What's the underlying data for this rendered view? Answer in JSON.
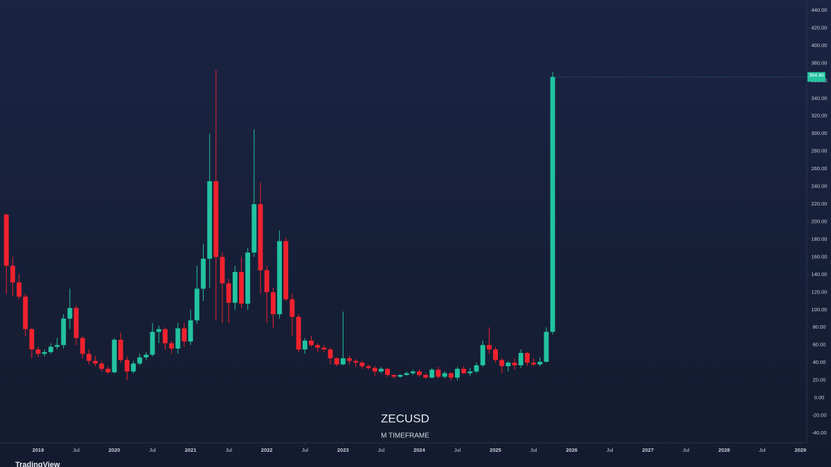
{
  "chart_data": {
    "type": "candlestick",
    "title": "ZECUSD",
    "subtitle": "M TIMEFRAME",
    "watermark": "TradingView",
    "up_color": "#22c3a0",
    "down_color": "#f0222e",
    "price_label": "364.40",
    "x": [
      "2018-08",
      "2018-09",
      "2018-10",
      "2018-11",
      "2018-12",
      "2019-01",
      "2019-02",
      "2019-03",
      "2019-04",
      "2019-05",
      "2019-06",
      "2019-07",
      "2019-08",
      "2019-09",
      "2019-10",
      "2019-11",
      "2019-12",
      "2020-01",
      "2020-02",
      "2020-03",
      "2020-04",
      "2020-05",
      "2020-06",
      "2020-07",
      "2020-08",
      "2020-09",
      "2020-10",
      "2020-11",
      "2020-12",
      "2021-01",
      "2021-02",
      "2021-03",
      "2021-04",
      "2021-05",
      "2021-06",
      "2021-07",
      "2021-08",
      "2021-09",
      "2021-10",
      "2021-11",
      "2021-12",
      "2022-01",
      "2022-02",
      "2022-03",
      "2022-04",
      "2022-05",
      "2022-06",
      "2022-07",
      "2022-08",
      "2022-09",
      "2022-10",
      "2022-11",
      "2022-12",
      "2023-01",
      "2023-02",
      "2023-03",
      "2023-04",
      "2023-05",
      "2023-06",
      "2023-07",
      "2023-08",
      "2023-09",
      "2023-10",
      "2023-11",
      "2023-12",
      "2024-01",
      "2024-02",
      "2024-03",
      "2024-04",
      "2024-05",
      "2024-06",
      "2024-07",
      "2024-08",
      "2024-09",
      "2024-10",
      "2024-11",
      "2024-12",
      "2025-01",
      "2025-02",
      "2025-03",
      "2025-04",
      "2025-05",
      "2025-06",
      "2025-07",
      "2025-08",
      "2025-09",
      "2025-10"
    ],
    "open": [
      208,
      150,
      131,
      115,
      78,
      55,
      50,
      52,
      58,
      60,
      90,
      102,
      68,
      50,
      42,
      39,
      33,
      29,
      66,
      43,
      30,
      39,
      46,
      49,
      75,
      78,
      62,
      56,
      79,
      64,
      88,
      124,
      158,
      246,
      160,
      130,
      108,
      143,
      107,
      165,
      220,
      145,
      120,
      95,
      178,
      112,
      92,
      55,
      65,
      60,
      57,
      55,
      45,
      38,
      45,
      42,
      40,
      36,
      34,
      30,
      33,
      26,
      24,
      26,
      28,
      30,
      26,
      23,
      32,
      24,
      28,
      23,
      33,
      28,
      30,
      37,
      60,
      55,
      43,
      36,
      40,
      37,
      51,
      40,
      38,
      41,
      75
    ],
    "high": [
      210,
      160,
      141,
      118,
      80,
      58,
      55,
      62,
      68,
      95,
      124,
      105,
      70,
      55,
      48,
      42,
      36,
      68,
      74,
      47,
      42,
      50,
      52,
      85,
      82,
      80,
      65,
      85,
      85,
      100,
      150,
      175,
      300,
      372,
      165,
      135,
      150,
      160,
      170,
      305,
      245,
      150,
      125,
      190,
      182,
      118,
      95,
      68,
      70,
      62,
      60,
      57,
      46,
      98,
      48,
      44,
      42,
      38,
      36,
      35,
      34,
      27,
      27,
      30,
      32,
      32,
      28,
      34,
      35,
      30,
      29,
      35,
      36,
      34,
      40,
      65,
      80,
      58,
      45,
      42,
      45,
      55,
      52,
      45,
      46,
      80,
      370
    ],
    "low": [
      118,
      115,
      112,
      70,
      45,
      46,
      47,
      50,
      55,
      56,
      78,
      60,
      45,
      38,
      36,
      30,
      27,
      28,
      40,
      20,
      28,
      37,
      43,
      47,
      62,
      55,
      50,
      50,
      58,
      60,
      84,
      110,
      125,
      88,
      85,
      85,
      100,
      102,
      100,
      160,
      118,
      85,
      80,
      90,
      110,
      70,
      52,
      50,
      58,
      52,
      52,
      38,
      36,
      37,
      38,
      35,
      33,
      32,
      25,
      28,
      24,
      22,
      23,
      25,
      26,
      24,
      22,
      22,
      22,
      22,
      20,
      20,
      27,
      25,
      28,
      35,
      50,
      40,
      28,
      30,
      32,
      34,
      36,
      36,
      36,
      40,
      72
    ],
    "close": [
      150,
      131,
      115,
      78,
      55,
      50,
      52,
      58,
      60,
      90,
      102,
      68,
      50,
      42,
      39,
      33,
      29,
      66,
      43,
      30,
      39,
      46,
      49,
      75,
      78,
      62,
      56,
      79,
      64,
      88,
      124,
      158,
      246,
      160,
      130,
      108,
      143,
      107,
      165,
      220,
      145,
      120,
      95,
      178,
      112,
      92,
      55,
      65,
      60,
      57,
      55,
      45,
      38,
      45,
      42,
      40,
      36,
      34,
      30,
      33,
      26,
      24,
      26,
      28,
      30,
      26,
      23,
      32,
      24,
      28,
      23,
      33,
      28,
      30,
      37,
      60,
      55,
      43,
      36,
      40,
      37,
      51,
      40,
      38,
      41,
      75,
      364.4
    ],
    "xlim": [
      "2018-07",
      "2029-02"
    ],
    "xticks": [
      {
        "value": "2019-01",
        "label": "2019"
      },
      {
        "value": "2019-07",
        "label": "Jul"
      },
      {
        "value": "2020-01",
        "label": "2020"
      },
      {
        "value": "2020-07",
        "label": "Jul"
      },
      {
        "value": "2021-01",
        "label": "2021"
      },
      {
        "value": "2021-07",
        "label": "Jul"
      },
      {
        "value": "2022-01",
        "label": "2022"
      },
      {
        "value": "2022-07",
        "label": "Jul"
      },
      {
        "value": "2023-01",
        "label": "2023"
      },
      {
        "value": "2023-07",
        "label": "Jul"
      },
      {
        "value": "2024-01",
        "label": "2024"
      },
      {
        "value": "2024-07",
        "label": "Jul"
      },
      {
        "value": "2025-01",
        "label": "2025"
      },
      {
        "value": "2025-07",
        "label": "Jul"
      },
      {
        "value": "2026-01",
        "label": "2026"
      },
      {
        "value": "2026-07",
        "label": "Jul"
      },
      {
        "value": "2027-01",
        "label": "2027"
      },
      {
        "value": "2027-07",
        "label": "Jul"
      },
      {
        "value": "2028-01",
        "label": "2028"
      },
      {
        "value": "2028-07",
        "label": "Jul"
      },
      {
        "value": "2029-01",
        "label": "2029"
      }
    ],
    "ylim": [
      -40,
      440
    ],
    "yticks": [
      {
        "value": -40,
        "label": "-40.00"
      },
      {
        "value": -20,
        "label": "-20.00"
      },
      {
        "value": 0,
        "label": "0.00"
      },
      {
        "value": 20,
        "label": "20.00"
      },
      {
        "value": 40,
        "label": "40.00"
      },
      {
        "value": 60,
        "label": "60.00"
      },
      {
        "value": 80,
        "label": "80.00"
      },
      {
        "value": 100,
        "label": "100.00"
      },
      {
        "value": 120,
        "label": "120.00"
      },
      {
        "value": 140,
        "label": "140.00"
      },
      {
        "value": 160,
        "label": "160.00"
      },
      {
        "value": 180,
        "label": "180.00"
      },
      {
        "value": 200,
        "label": "200.00"
      },
      {
        "value": 220,
        "label": "220.00"
      },
      {
        "value": 240,
        "label": "240.00"
      },
      {
        "value": 260,
        "label": "260.00"
      },
      {
        "value": 280,
        "label": "280.00"
      },
      {
        "value": 300,
        "label": "300.00"
      },
      {
        "value": 320,
        "label": "320.00"
      },
      {
        "value": 340,
        "label": "340.00"
      },
      {
        "value": 360,
        "label": "360.00"
      },
      {
        "value": 380,
        "label": "380.00"
      },
      {
        "value": 400,
        "label": "400.00"
      },
      {
        "value": 420,
        "label": "420.00"
      },
      {
        "value": 440,
        "label": "440.00"
      }
    ]
  }
}
